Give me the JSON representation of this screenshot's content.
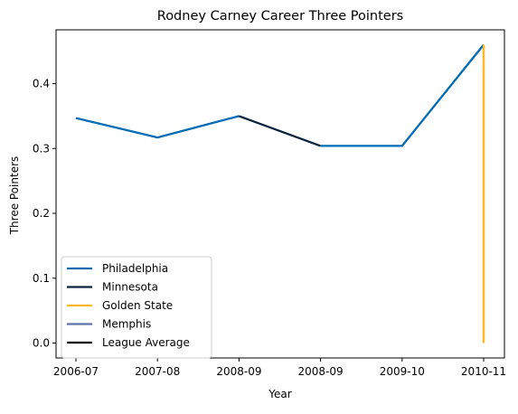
{
  "chart_data": {
    "type": "line",
    "title": "Rodney Carney Career Three Pointers",
    "xlabel": "Year",
    "ylabel": "Three Pointers",
    "x_tick_labels": [
      "2006-07",
      "2007-08",
      "2008-09",
      "2008-09",
      "2009-10",
      "2010-11"
    ],
    "ylim": [
      -0.023,
      0.483
    ],
    "y_ticks": [
      0.0,
      0.1,
      0.2,
      0.3,
      0.4
    ],
    "y_tick_labels": [
      "0.0",
      "0.1",
      "0.2",
      "0.3",
      "0.4"
    ],
    "grid": false,
    "legend_position": "lower-left",
    "series": [
      {
        "name": "Philadelphia",
        "color": "#006bb6",
        "x_index": [
          0,
          1,
          2
        ],
        "values": [
          0.347,
          0.317,
          0.35
        ]
      },
      {
        "name": "Minnesota",
        "color": "#0c2340",
        "x_index": [
          2,
          3
        ],
        "values": [
          0.35,
          0.304
        ]
      },
      {
        "name": "Golden State",
        "color": "#fdb927",
        "x_index": [
          5,
          5
        ],
        "values": [
          0.0,
          0.46
        ]
      },
      {
        "name": "Memphis",
        "color": "#5d76a9",
        "x_index": [],
        "values": []
      },
      {
        "name": "League Average",
        "color": "#000000",
        "x_index": [],
        "values": []
      }
    ],
    "extra_segments": [
      {
        "series": "Philadelphia",
        "x_index": [
          3,
          4,
          5
        ],
        "values": [
          0.304,
          0.304,
          0.46
        ]
      }
    ]
  }
}
